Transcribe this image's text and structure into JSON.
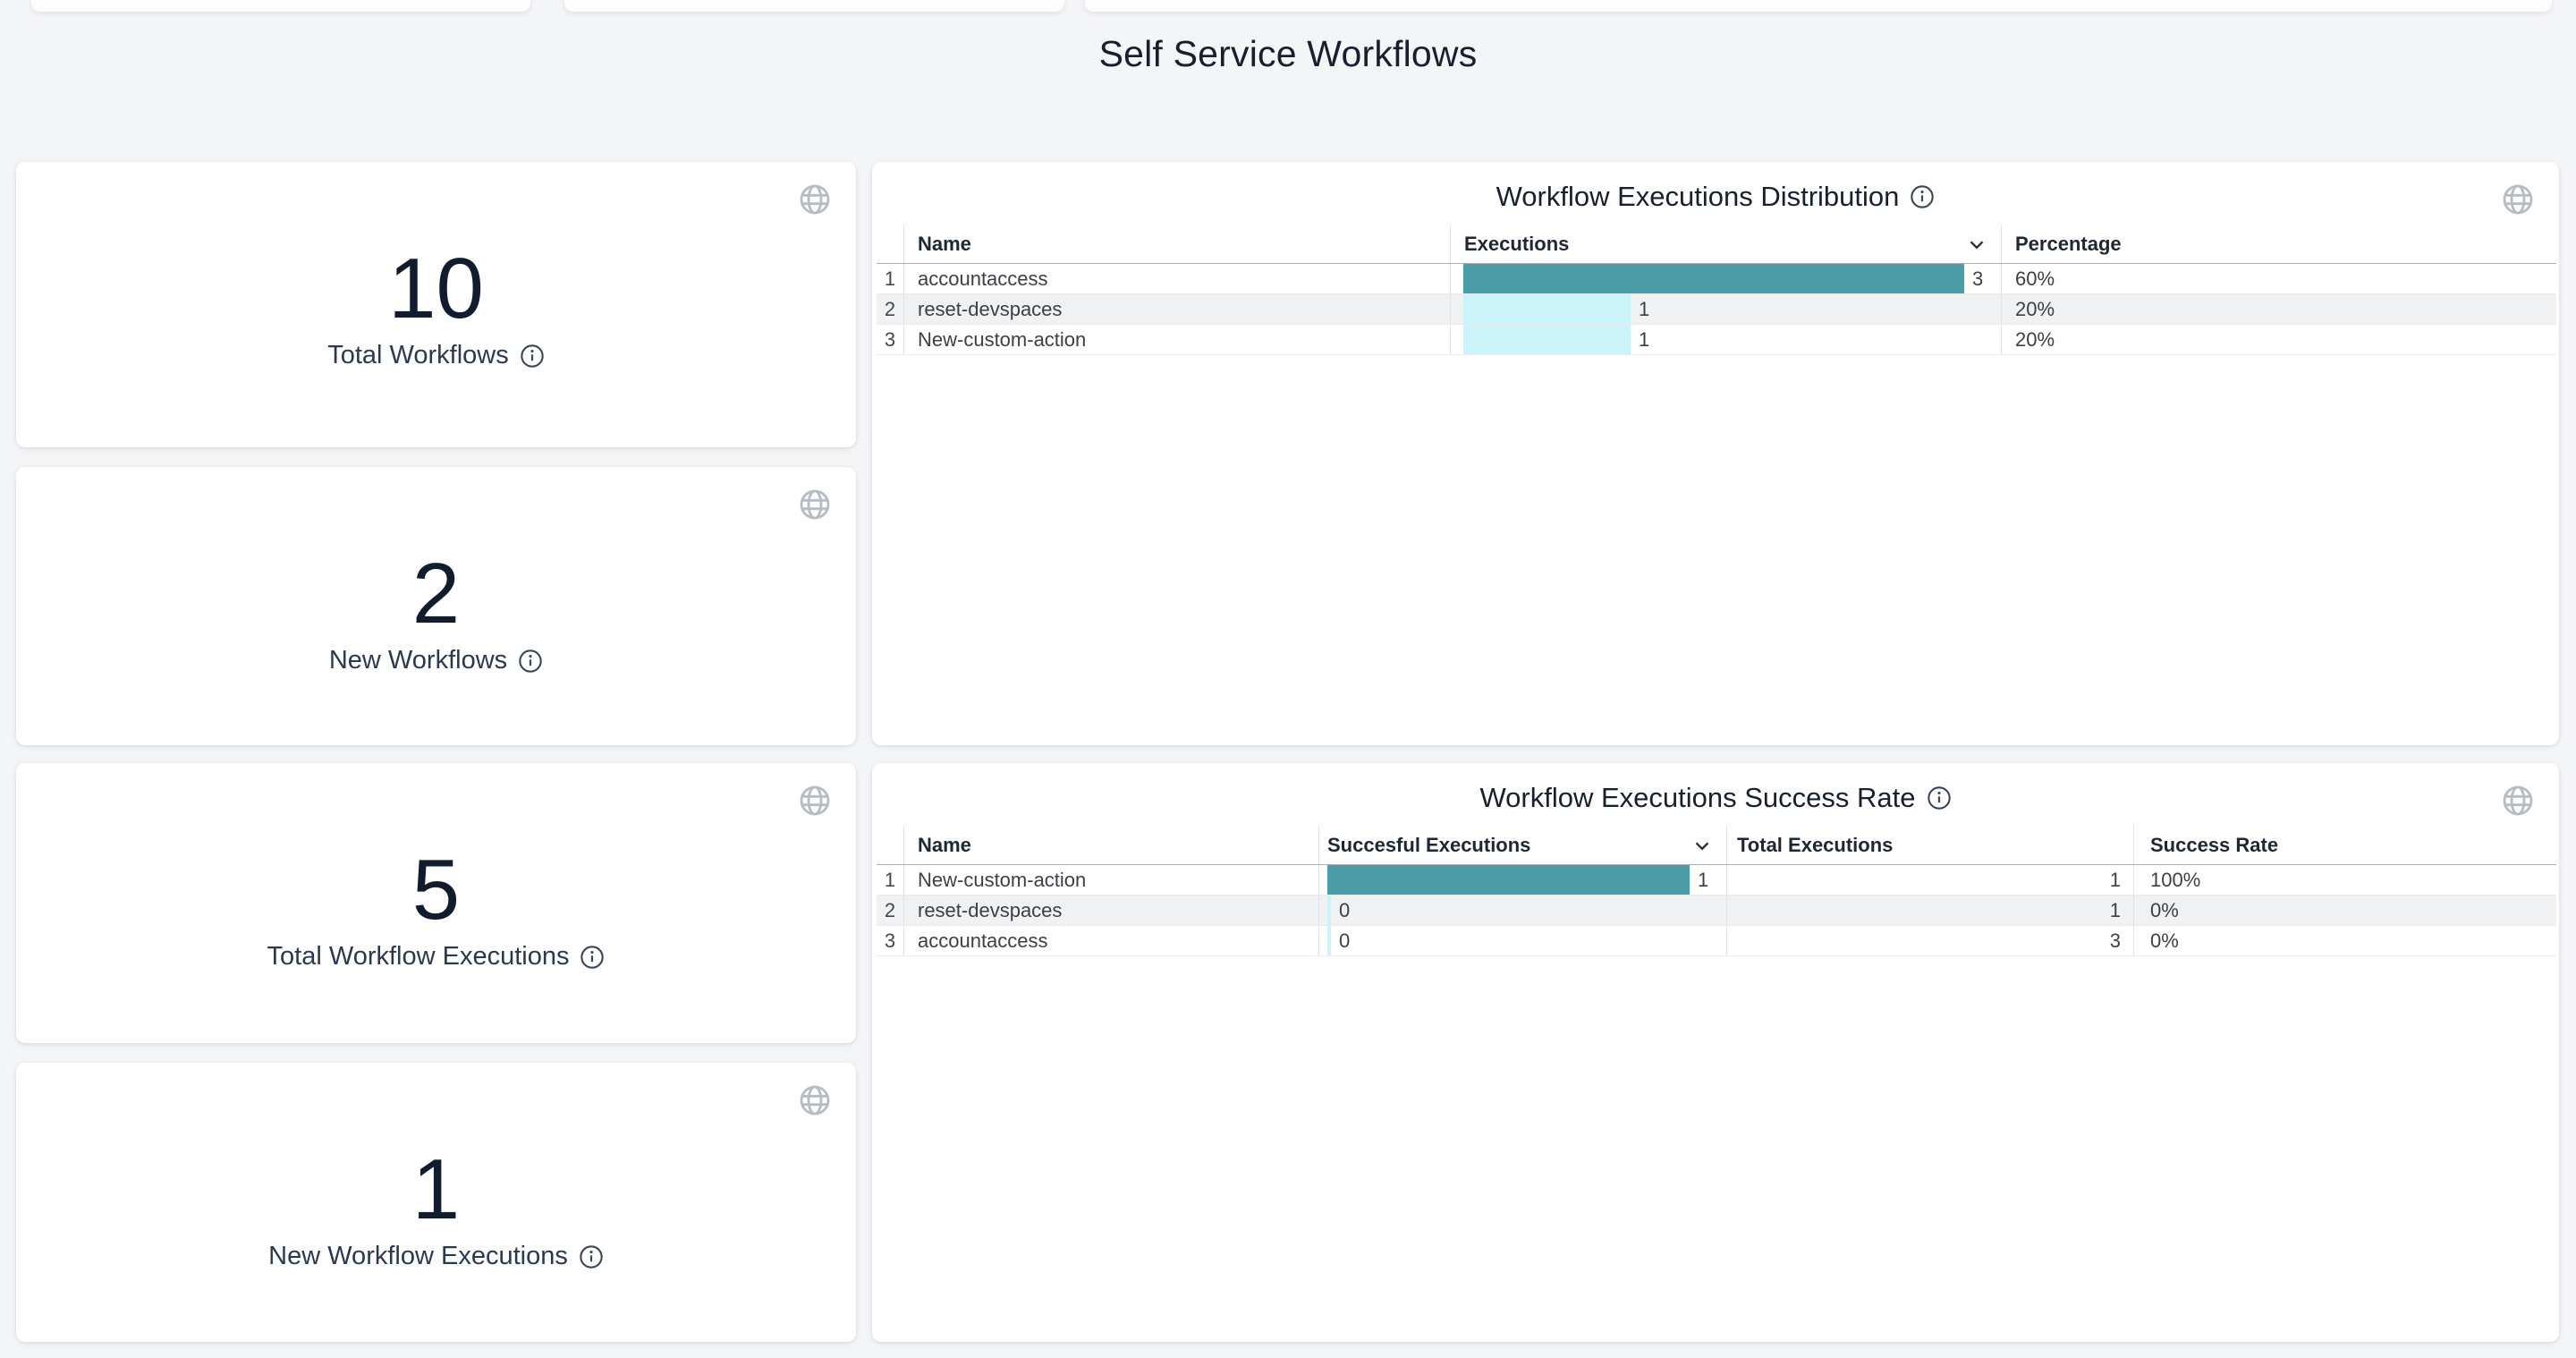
{
  "page_title": "Self Service Workflows",
  "stat_cards": [
    {
      "value": "10",
      "label": "Total Workflows"
    },
    {
      "value": "2",
      "label": "New Workflows"
    },
    {
      "value": "5",
      "label": "Total Workflow Executions"
    },
    {
      "value": "1",
      "label": "New Workflow Executions"
    }
  ],
  "panels": {
    "distribution": {
      "title": "Workflow Executions Distribution",
      "columns": {
        "name": "Name",
        "executions": "Executions",
        "percentage": "Percentage"
      },
      "sorted_by": "Executions",
      "rows": [
        {
          "index": "1",
          "name": "accountaccess",
          "executions": 3,
          "percentage": "60%"
        },
        {
          "index": "2",
          "name": "reset-devspaces",
          "executions": 1,
          "percentage": "20%"
        },
        {
          "index": "3",
          "name": "New-custom-action",
          "executions": 1,
          "percentage": "20%"
        }
      ]
    },
    "success_rate": {
      "title": "Workflow Executions Success Rate",
      "columns": {
        "name": "Name",
        "successful": "Succesful Executions",
        "total": "Total Executions",
        "rate": "Success Rate"
      },
      "sorted_by": "Succesful Executions",
      "rows": [
        {
          "index": "1",
          "name": "New-custom-action",
          "successful": 1,
          "total": "1",
          "rate": "100%"
        },
        {
          "index": "2",
          "name": "reset-devspaces",
          "successful": 0,
          "total": "1",
          "rate": "0%"
        },
        {
          "index": "3",
          "name": "accountaccess",
          "successful": 0,
          "total": "3",
          "rate": "0%"
        }
      ]
    }
  },
  "colors": {
    "bar_max": "#4A9DA6",
    "bar_other": "#CAF3FA",
    "zebra_row": "#F0F1F2",
    "page_background": "#F4F5F7",
    "title_text": "#18202F"
  },
  "chart_data": [
    {
      "type": "table",
      "title": "Workflow Executions Distribution",
      "columns": [
        "Name",
        "Executions",
        "Percentage"
      ],
      "rows": [
        [
          "accountaccess",
          3,
          "60%"
        ],
        [
          "reset-devspaces",
          1,
          "20%"
        ],
        [
          "New-custom-action",
          1,
          "20%"
        ]
      ],
      "bar_column": "Executions",
      "bar_range": [
        0,
        3
      ]
    },
    {
      "type": "table",
      "title": "Workflow Executions Success Rate",
      "columns": [
        "Name",
        "Succesful Executions",
        "Total Executions",
        "Success Rate"
      ],
      "rows": [
        [
          "New-custom-action",
          1,
          1,
          "100%"
        ],
        [
          "reset-devspaces",
          0,
          1,
          "0%"
        ],
        [
          "accountaccess",
          0,
          3,
          "0%"
        ]
      ],
      "bar_column": "Succesful Executions",
      "bar_range": [
        0,
        1
      ]
    }
  ]
}
